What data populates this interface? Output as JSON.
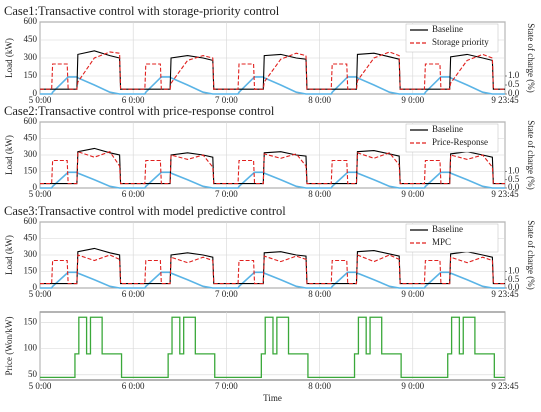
{
  "chart_data": [
    {
      "type": "line",
      "title": "Case1:Transactive control with storage-priority control",
      "ylabel": "Load (kW)",
      "y2label": "State of charge (%)",
      "x": [
        0,
        3,
        3.25,
        7,
        7.25,
        9.5,
        9.75,
        14,
        18,
        20.5,
        20.75,
        24,
        27,
        27.25,
        31,
        31.25,
        33.5,
        33.75,
        38,
        42,
        44.5,
        44.75,
        48,
        51,
        51.25,
        55,
        55.25,
        57.5,
        57.75,
        62,
        66,
        68.5,
        68.75,
        72,
        75,
        75.25,
        79,
        79.25,
        81.5,
        81.75,
        86,
        90,
        92.5,
        92.75,
        96,
        99,
        99.25,
        103,
        103.25,
        105.5,
        105.75,
        110,
        114,
        116.5,
        116.75,
        119.75
      ],
      "series": [
        {
          "name": "Baseline",
          "color": "#000000",
          "dash": "none",
          "values": [
            40,
            40,
            40,
            40,
            40,
            40,
            330,
            360,
            320,
            300,
            40,
            40,
            40,
            40,
            40,
            40,
            40,
            300,
            320,
            300,
            280,
            40,
            40,
            40,
            40,
            40,
            40,
            40,
            320,
            330,
            300,
            290,
            40,
            40,
            40,
            40,
            40,
            40,
            40,
            330,
            340,
            310,
            290,
            40,
            40,
            40,
            40,
            40,
            40,
            40,
            310,
            330,
            300,
            280,
            40,
            40
          ]
        },
        {
          "name": "Storage priority",
          "color": "#e0201e",
          "dash": "4,2",
          "values": [
            40,
            40,
            250,
            250,
            40,
            40,
            100,
            300,
            350,
            340,
            40,
            40,
            40,
            250,
            250,
            40,
            40,
            90,
            280,
            320,
            300,
            40,
            40,
            40,
            250,
            250,
            40,
            40,
            100,
            290,
            340,
            320,
            40,
            40,
            40,
            250,
            250,
            40,
            40,
            110,
            300,
            350,
            320,
            40,
            40,
            40,
            250,
            250,
            40,
            40,
            90,
            280,
            330,
            300,
            40,
            40
          ]
        }
      ],
      "y2_color": "#5ab4e6",
      "y2_values": [
        0,
        0,
        0.1,
        0.9,
        0.95,
        0.95,
        0.9,
        0.5,
        0.1,
        0,
        0,
        0,
        0,
        0.1,
        0.9,
        0.95,
        0.95,
        0.9,
        0.5,
        0.1,
        0,
        0,
        0,
        0,
        0.1,
        0.9,
        0.95,
        0.95,
        0.9,
        0.5,
        0.1,
        0,
        0,
        0,
        0,
        0.1,
        0.9,
        0.95,
        0.95,
        0.9,
        0.5,
        0.1,
        0,
        0,
        0,
        0,
        0.1,
        0.9,
        0.95,
        0.95,
        0.9,
        0.5,
        0.1,
        0,
        0,
        0
      ],
      "xlim": [
        0,
        119.75
      ],
      "ylim": [
        0,
        600
      ],
      "yticks": [
        0,
        150,
        300,
        450,
        600
      ],
      "y2lim": [
        0,
        4
      ],
      "y2ticks": [
        {
          "value": 0,
          "label": "0.0"
        },
        {
          "value": 0.5,
          "label": "0.5"
        },
        {
          "value": 1,
          "label": "1.0"
        }
      ],
      "xticks": [
        {
          "value": 0,
          "label": "5 0:00"
        },
        {
          "value": 24,
          "label": "6 0:00"
        },
        {
          "value": 48,
          "label": "7 0:00"
        },
        {
          "value": 72,
          "label": "8 0:00"
        },
        {
          "value": 96,
          "label": "9 0:00"
        },
        {
          "value": 119.75,
          "label": "9 23:45"
        }
      ],
      "grid": true
    },
    {
      "type": "line",
      "title": "Case2:Transactive control with price-response control",
      "ylabel": "Load (kW)",
      "y2label": "State of charge (%)",
      "x": [
        0,
        3,
        3.25,
        7,
        7.25,
        9.5,
        9.75,
        14,
        18,
        20.5,
        20.75,
        24,
        27,
        27.25,
        31,
        31.25,
        33.5,
        33.75,
        38,
        42,
        44.5,
        44.75,
        48,
        51,
        51.25,
        55,
        55.25,
        57.5,
        57.75,
        62,
        66,
        68.5,
        68.75,
        72,
        75,
        75.25,
        79,
        79.25,
        81.5,
        81.75,
        86,
        90,
        92.5,
        92.75,
        96,
        99,
        99.25,
        103,
        103.25,
        105.5,
        105.75,
        110,
        114,
        116.5,
        116.75,
        119.75
      ],
      "series": [
        {
          "name": "Baseline",
          "color": "#000000",
          "dash": "none",
          "values": [
            40,
            40,
            40,
            40,
            40,
            40,
            330,
            360,
            320,
            300,
            40,
            40,
            40,
            40,
            40,
            40,
            40,
            300,
            320,
            300,
            280,
            40,
            40,
            40,
            40,
            40,
            40,
            40,
            320,
            330,
            300,
            290,
            40,
            40,
            40,
            40,
            40,
            40,
            40,
            330,
            340,
            310,
            290,
            40,
            40,
            40,
            40,
            40,
            40,
            40,
            310,
            330,
            300,
            280,
            40,
            40
          ]
        },
        {
          "name": "Price-Response",
          "color": "#e0201e",
          "dash": "4,2",
          "values": [
            40,
            40,
            250,
            250,
            40,
            40,
            330,
            280,
            330,
            200,
            40,
            40,
            40,
            250,
            250,
            40,
            40,
            300,
            260,
            300,
            190,
            40,
            40,
            40,
            250,
            250,
            40,
            40,
            310,
            270,
            310,
            200,
            40,
            40,
            40,
            250,
            250,
            40,
            40,
            320,
            270,
            320,
            210,
            40,
            40,
            40,
            250,
            250,
            40,
            40,
            300,
            260,
            300,
            190,
            40,
            40
          ]
        }
      ],
      "y2_color": "#5ab4e6",
      "y2_values": [
        0,
        0,
        0.1,
        0.9,
        0.95,
        0.95,
        0.9,
        0.5,
        0.1,
        0,
        0,
        0,
        0,
        0.1,
        0.9,
        0.95,
        0.95,
        0.9,
        0.5,
        0.1,
        0,
        0,
        0,
        0,
        0.1,
        0.9,
        0.95,
        0.95,
        0.9,
        0.5,
        0.1,
        0,
        0,
        0,
        0,
        0.1,
        0.9,
        0.95,
        0.95,
        0.9,
        0.5,
        0.1,
        0,
        0,
        0,
        0,
        0.1,
        0.9,
        0.95,
        0.95,
        0.9,
        0.5,
        0.1,
        0,
        0,
        0
      ],
      "xlim": [
        0,
        119.75
      ],
      "ylim": [
        0,
        600
      ],
      "yticks": [
        0,
        150,
        300,
        450,
        600
      ],
      "y2lim": [
        0,
        4
      ],
      "y2ticks": [
        {
          "value": 0,
          "label": "0.0"
        },
        {
          "value": 0.5,
          "label": "0.5"
        },
        {
          "value": 1,
          "label": "1.0"
        }
      ],
      "xticks": [
        {
          "value": 0,
          "label": "5 0:00"
        },
        {
          "value": 24,
          "label": "6 0:00"
        },
        {
          "value": 48,
          "label": "7 0:00"
        },
        {
          "value": 72,
          "label": "8 0:00"
        },
        {
          "value": 96,
          "label": "9 0:00"
        },
        {
          "value": 119.75,
          "label": "9 23:45"
        }
      ],
      "grid": true
    },
    {
      "type": "line",
      "title": "Case3:Transactive control with model predictive control",
      "ylabel": "Load (kW)",
      "y2label": "State of charge (%)",
      "x": [
        0,
        3,
        3.25,
        7,
        7.25,
        9.5,
        9.75,
        14,
        18,
        20.5,
        20.75,
        24,
        27,
        27.25,
        31,
        31.25,
        33.5,
        33.75,
        38,
        42,
        44.5,
        44.75,
        48,
        51,
        51.25,
        55,
        55.25,
        57.5,
        57.75,
        62,
        66,
        68.5,
        68.75,
        72,
        75,
        75.25,
        79,
        79.25,
        81.5,
        81.75,
        86,
        90,
        92.5,
        92.75,
        96,
        99,
        99.25,
        103,
        103.25,
        105.5,
        105.75,
        110,
        114,
        116.5,
        116.75,
        119.75
      ],
      "series": [
        {
          "name": "Baseline",
          "color": "#000000",
          "dash": "none",
          "values": [
            40,
            40,
            40,
            40,
            40,
            40,
            330,
            360,
            320,
            300,
            40,
            40,
            40,
            40,
            40,
            40,
            40,
            300,
            320,
            300,
            280,
            40,
            40,
            40,
            40,
            40,
            40,
            40,
            320,
            330,
            300,
            290,
            40,
            40,
            40,
            40,
            40,
            40,
            40,
            330,
            340,
            310,
            290,
            40,
            40,
            40,
            40,
            40,
            40,
            40,
            310,
            330,
            300,
            280,
            40,
            40
          ]
        },
        {
          "name": "MPC",
          "color": "#e0201e",
          "dash": "4,2",
          "values": [
            40,
            40,
            250,
            250,
            40,
            40,
            300,
            250,
            300,
            260,
            40,
            40,
            40,
            250,
            250,
            40,
            40,
            280,
            230,
            280,
            250,
            40,
            40,
            40,
            250,
            250,
            40,
            40,
            290,
            240,
            290,
            260,
            40,
            40,
            40,
            250,
            250,
            40,
            40,
            300,
            240,
            300,
            260,
            40,
            40,
            40,
            250,
            250,
            40,
            40,
            280,
            230,
            280,
            250,
            40,
            40
          ]
        }
      ],
      "y2_color": "#5ab4e6",
      "y2_values": [
        0,
        0,
        0.1,
        0.9,
        0.95,
        0.95,
        0.9,
        0.5,
        0.1,
        0,
        0,
        0,
        0,
        0.1,
        0.9,
        0.95,
        0.95,
        0.9,
        0.5,
        0.1,
        0,
        0,
        0,
        0,
        0.1,
        0.9,
        0.95,
        0.95,
        0.9,
        0.5,
        0.1,
        0,
        0,
        0,
        0,
        0.1,
        0.9,
        0.95,
        0.95,
        0.9,
        0.5,
        0.1,
        0,
        0,
        0,
        0,
        0.1,
        0.9,
        0.95,
        0.95,
        0.9,
        0.5,
        0.1,
        0,
        0,
        0
      ],
      "xlim": [
        0,
        119.75
      ],
      "ylim": [
        0,
        600
      ],
      "yticks": [
        0,
        150,
        300,
        450,
        600
      ],
      "y2lim": [
        0,
        4
      ],
      "y2ticks": [
        {
          "value": 0,
          "label": "0.0"
        },
        {
          "value": 0.5,
          "label": "0.5"
        },
        {
          "value": 1,
          "label": "1.0"
        }
      ],
      "xticks": [
        {
          "value": 0,
          "label": "5 0:00"
        },
        {
          "value": 24,
          "label": "6 0:00"
        },
        {
          "value": 48,
          "label": "7 0:00"
        },
        {
          "value": 72,
          "label": "8 0:00"
        },
        {
          "value": 96,
          "label": "9 0:00"
        },
        {
          "value": 119.75,
          "label": "9 23:45"
        }
      ],
      "grid": true
    },
    {
      "type": "step",
      "ylabel": "Price (Won/kW)",
      "xlabel": "Time",
      "x": [
        0,
        9,
        10,
        12,
        13,
        16,
        21,
        24,
        33,
        34,
        36,
        37,
        40,
        45,
        48,
        57,
        58,
        60,
        61,
        64,
        69,
        72,
        81,
        82,
        84,
        85,
        88,
        93,
        96,
        105,
        106,
        108,
        109,
        112,
        117,
        119.75
      ],
      "series": [
        {
          "color": "#3aa83a",
          "values": [
            45,
            90,
            160,
            90,
            160,
            90,
            45,
            45,
            90,
            160,
            90,
            160,
            90,
            45,
            45,
            90,
            160,
            90,
            160,
            90,
            45,
            45,
            90,
            160,
            90,
            160,
            90,
            45,
            45,
            90,
            160,
            90,
            160,
            90,
            45,
            45
          ]
        }
      ],
      "xlim": [
        0,
        119.75
      ],
      "ylim": [
        40,
        170
      ],
      "yticks": [
        50,
        100,
        150
      ],
      "xticks": [
        {
          "value": 0,
          "label": "5 0:00"
        },
        {
          "value": 24,
          "label": "6 0:00"
        },
        {
          "value": 48,
          "label": "7 0:00"
        },
        {
          "value": 72,
          "label": "8 0:00"
        },
        {
          "value": 96,
          "label": "9 0:00"
        },
        {
          "value": 119.75,
          "label": "9 23:45"
        }
      ],
      "grid": true
    }
  ]
}
